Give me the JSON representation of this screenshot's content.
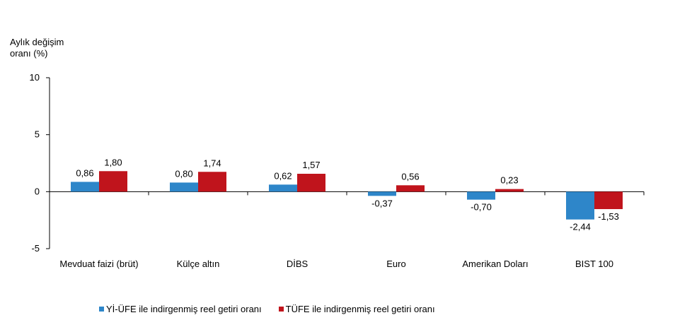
{
  "chart_data": {
    "type": "bar",
    "ylabel_lines": [
      "Aylık değişim",
      "oranı (%)"
    ],
    "ylim": [
      -5,
      10
    ],
    "yticks": [
      -5,
      0,
      5,
      10
    ],
    "categories": [
      "Mevduat faizi (brüt)",
      "Külçe altın",
      "DİBS",
      "Euro",
      "Amerikan Doları",
      "BIST 100"
    ],
    "series": [
      {
        "name": "Yİ-ÜFE ile indirgenmiş reel getiri oranı",
        "color": "#2E86C9",
        "values": [
          0.86,
          0.8,
          0.62,
          -0.37,
          -0.7,
          -2.44
        ],
        "labels": [
          "0,86",
          "0,80",
          "0,62",
          "-0,37",
          "-0,70",
          "-2,44"
        ]
      },
      {
        "name": "TÜFE ile indirgenmiş reel getiri oranı",
        "color": "#C0141C",
        "values": [
          1.8,
          1.74,
          1.57,
          0.56,
          0.23,
          -1.53
        ],
        "labels": [
          "1,80",
          "1,74",
          "1,57",
          "0,56",
          "0,23",
          "-1,53"
        ]
      }
    ],
    "grid": false,
    "legend_position": "bottom-left"
  }
}
